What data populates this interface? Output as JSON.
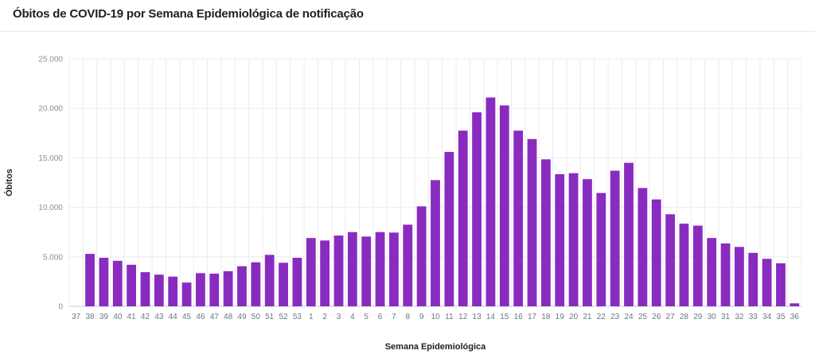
{
  "header": {
    "title": "Óbitos de COVID-19 por Semana Epidemiológica de notificação"
  },
  "colors": {
    "bar": "#8A2BBF",
    "grid": "#ECECF1",
    "baseline": "#C9CBD6"
  },
  "chart_data": {
    "type": "bar",
    "title": "Óbitos de COVID-19 por Semana Epidemiológica de notificação",
    "xlabel": "Semana Epidemiológica",
    "ylabel": "Óbitos",
    "ylim": [
      0,
      25000
    ],
    "yticks": [
      0,
      5000,
      10000,
      15000,
      20000,
      25000
    ],
    "ytick_labels": [
      "0",
      "5.000",
      "10.000",
      "15.000",
      "20.000",
      "25.000"
    ],
    "grid": true,
    "categories": [
      "37",
      "38",
      "39",
      "40",
      "41",
      "42",
      "43",
      "44",
      "45",
      "46",
      "47",
      "48",
      "49",
      "50",
      "51",
      "52",
      "53",
      "1",
      "2",
      "3",
      "4",
      "5",
      "6",
      "7",
      "8",
      "9",
      "10",
      "11",
      "12",
      "13",
      "14",
      "15",
      "16",
      "17",
      "18",
      "19",
      "20",
      "21",
      "22",
      "23",
      "24",
      "25",
      "26",
      "27",
      "28",
      "29",
      "30",
      "31",
      "32",
      "33",
      "34",
      "35",
      "36"
    ],
    "values": [
      0,
      5300,
      4900,
      4600,
      4200,
      3450,
      3200,
      3000,
      2400,
      3350,
      3300,
      3550,
      4050,
      4450,
      5200,
      4400,
      4900,
      6900,
      6650,
      7150,
      7500,
      7050,
      7500,
      7450,
      8250,
      10100,
      12750,
      15600,
      17750,
      19600,
      21100,
      20300,
      17750,
      16900,
      14850,
      13350,
      13450,
      12850,
      11450,
      13700,
      14500,
      11950,
      10800,
      9300,
      8350,
      8150,
      6900,
      6350,
      6000,
      5400,
      4800,
      4350,
      300
    ]
  }
}
